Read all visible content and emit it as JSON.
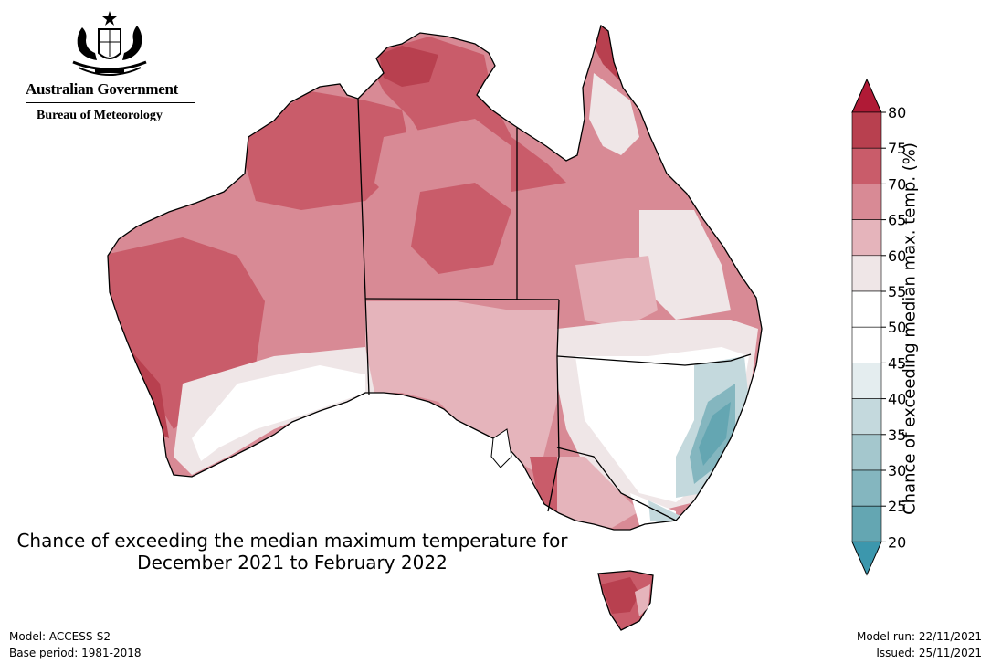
{
  "header": {
    "government": "Australian Government",
    "bureau": "Bureau of Meteorology"
  },
  "map": {
    "title_line1": "Chance of exceeding the median maximum temperature for",
    "title_line2": "December 2021 to February 2022",
    "region": "Australia"
  },
  "colorbar": {
    "label": "Chance of exceeding median max. temp. (%)",
    "ticks": [
      "80",
      "75",
      "70",
      "65",
      "60",
      "55",
      "50",
      "45",
      "40",
      "35",
      "30",
      "25",
      "20"
    ],
    "colors": [
      "#b8404f",
      "#c95c6a",
      "#d88a95",
      "#e5b4bb",
      "#efe6e7",
      "#ffffff",
      "#ffffff",
      "#e4edef",
      "#c4d9dd",
      "#a4c7cd",
      "#84b6bf",
      "#64a6b2"
    ],
    "over_color": "#b01a36",
    "under_color": "#3c97ad"
  },
  "footer": {
    "model": "Model: ACCESS-S2",
    "base_period": "Base period: 1981-2018",
    "model_run": "Model run: 22/11/2021",
    "issued": "Issued: 25/11/2021"
  }
}
